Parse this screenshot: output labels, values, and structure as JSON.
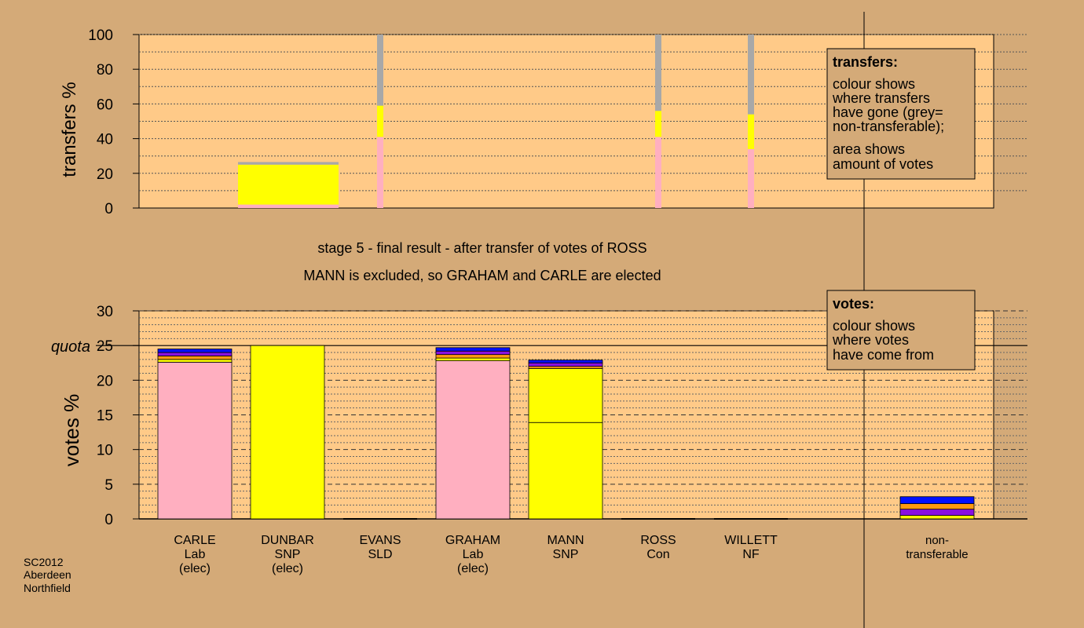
{
  "colors": {
    "background": "#d4aa78",
    "plot_bg": "#ffca88",
    "pink": "#ffafc0",
    "yellow": "#ffff00",
    "grey": "#a8a8a8",
    "purple": "#8a10e0",
    "blue": "#0010ff",
    "orange": "#ff9a10"
  },
  "header": {
    "line1": "stage 5 - final result - after transfer of votes of ROSS",
    "line2": "MANN is excluded, so GRAHAM and CARLE are elected"
  },
  "footer": {
    "line1": "SC2012",
    "line2": "Aberdeen",
    "line3": "Northfield"
  },
  "transfers_legend": {
    "title": "transfers:",
    "lines": [
      "colour shows",
      "where transfers",
      "have gone (grey=",
      "non-transferable);",
      "area shows",
      "amount of votes"
    ]
  },
  "votes_legend": {
    "title": "votes:",
    "lines": [
      "colour shows",
      "where votes",
      "have come from"
    ]
  },
  "chart_data": [
    {
      "type": "bar",
      "ylabel": "transfers %",
      "ylim": [
        0,
        100
      ],
      "yticks": [
        0,
        20,
        40,
        60,
        80,
        100
      ],
      "categories": [
        "CARLE",
        "DUNBAR",
        "EVANS",
        "GRAHAM",
        "MANN",
        "ROSS",
        "WILLETT"
      ],
      "stacks": [
        [],
        [
          {
            "color": "pink",
            "from": 0,
            "to": 2
          },
          {
            "color": "yellow",
            "from": 2,
            "to": 25
          },
          {
            "color": "grey",
            "from": 25,
            "to": 26.5
          }
        ],
        [
          {
            "color": "pink",
            "from": 0,
            "to": 41
          },
          {
            "color": "yellow",
            "from": 41,
            "to": 59
          },
          {
            "color": "grey",
            "from": 59,
            "to": 100
          }
        ],
        [],
        [],
        [
          {
            "color": "pink",
            "from": 0,
            "to": 41
          },
          {
            "color": "yellow",
            "from": 41,
            "to": 56
          },
          {
            "color": "grey",
            "from": 56,
            "to": 100
          }
        ],
        [
          {
            "color": "pink",
            "from": 0,
            "to": 34
          },
          {
            "color": "yellow",
            "from": 34,
            "to": 54
          },
          {
            "color": "grey",
            "from": 54,
            "to": 100
          }
        ]
      ]
    },
    {
      "type": "bar",
      "ylabel": "votes %",
      "ylim": [
        0,
        30
      ],
      "yticks": [
        0,
        5,
        10,
        15,
        20,
        25,
        30
      ],
      "quota": 25,
      "quota_label": "quota",
      "categories": [
        {
          "name": "CARLE",
          "party": "Lab",
          "note": "(elec)"
        },
        {
          "name": "DUNBAR",
          "party": "SNP",
          "note": "(elec)"
        },
        {
          "name": "EVANS",
          "party": "SLD",
          "note": ""
        },
        {
          "name": "GRAHAM",
          "party": "Lab",
          "note": "(elec)"
        },
        {
          "name": "MANN",
          "party": "SNP",
          "note": ""
        },
        {
          "name": "ROSS",
          "party": "Con",
          "note": ""
        },
        {
          "name": "WILLETT",
          "party": "NF",
          "note": ""
        },
        {
          "name": "non-",
          "party": "transferable",
          "note": ""
        }
      ],
      "stacks": [
        [
          {
            "color": "pink",
            "value": 22.6
          },
          {
            "color": "yellow",
            "value": 0.4
          },
          {
            "color": "orange",
            "value": 0.5
          },
          {
            "color": "purple",
            "value": 0.5
          },
          {
            "color": "blue",
            "value": 0.5
          }
        ],
        [
          {
            "color": "yellow",
            "value": 25.0
          }
        ],
        [],
        [
          {
            "color": "pink",
            "value": 22.8
          },
          {
            "color": "yellow",
            "value": 0.4
          },
          {
            "color": "orange",
            "value": 0.5
          },
          {
            "color": "purple",
            "value": 0.5
          },
          {
            "color": "blue",
            "value": 0.5
          }
        ],
        [
          {
            "color": "yellow",
            "value": 13.9
          },
          {
            "color": "yellow",
            "value": 7.8
          },
          {
            "color": "orange",
            "value": 0.3
          },
          {
            "color": "purple",
            "value": 0.5
          },
          {
            "color": "blue",
            "value": 0.4
          }
        ],
        [],
        [],
        [
          {
            "color": "yellow",
            "value": 0.5
          },
          {
            "color": "purple",
            "value": 0.9
          },
          {
            "color": "orange",
            "value": 0.8
          },
          {
            "color": "blue",
            "value": 1.0
          }
        ]
      ]
    }
  ]
}
